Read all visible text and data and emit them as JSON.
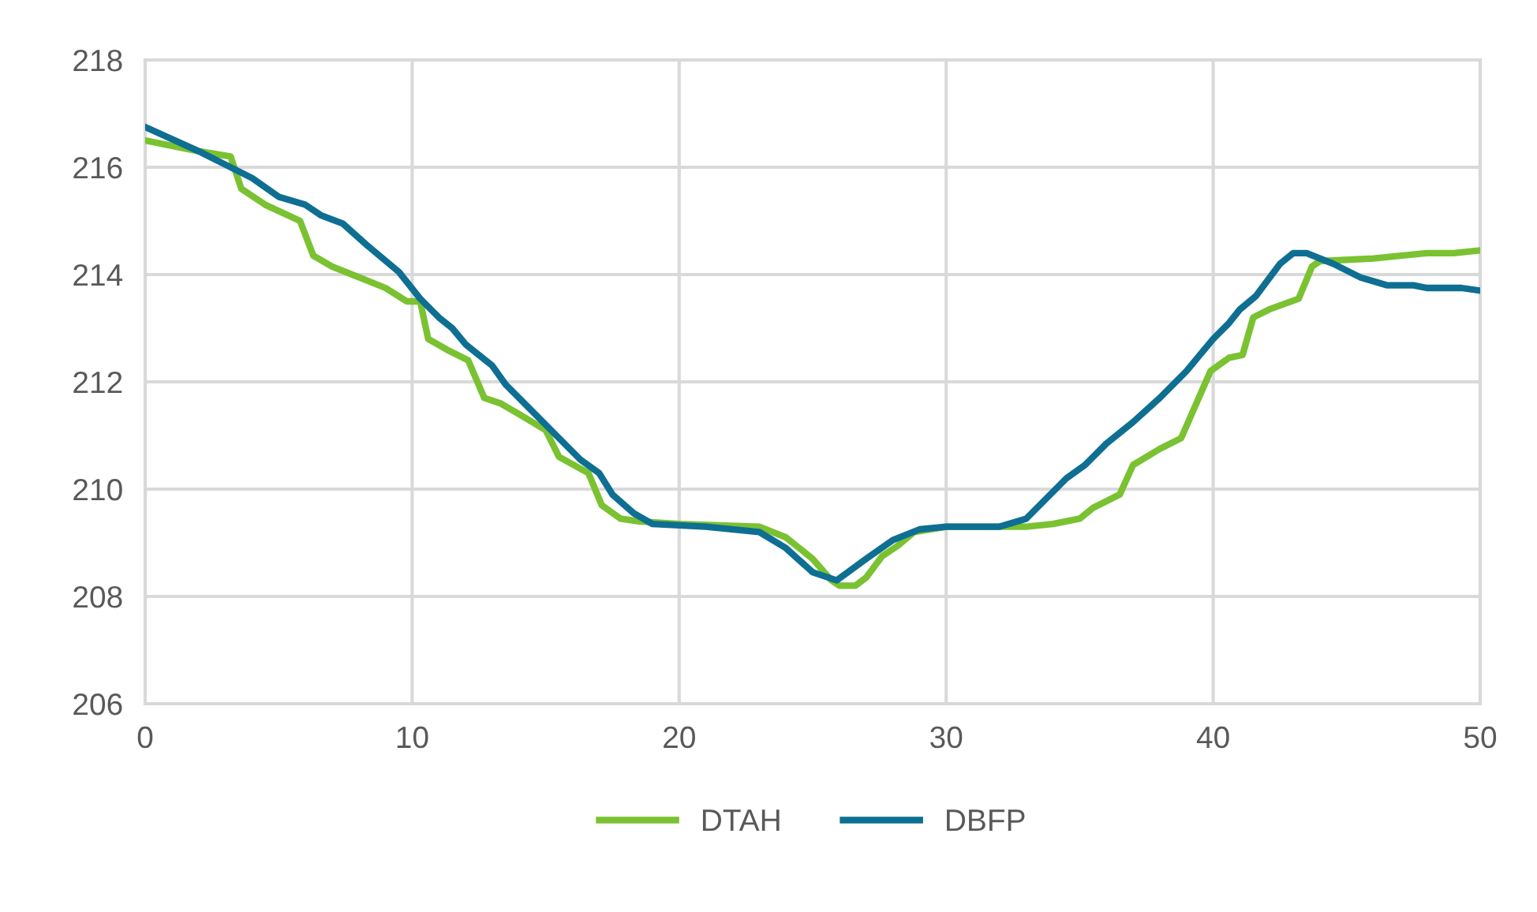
{
  "chart_data": {
    "type": "line",
    "xlim": [
      0,
      50
    ],
    "xticks": [
      0,
      10,
      20,
      30,
      40,
      50
    ],
    "ylim": [
      206,
      218
    ],
    "yticks": [
      206,
      208,
      210,
      212,
      214,
      216,
      218
    ],
    "grid": true,
    "legend": "bottom",
    "marker": "none",
    "line_style": "solid",
    "series": [
      {
        "name": "DTAH",
        "color": "#7ac231",
        "x": [
          0,
          1,
          2,
          3.2,
          3.6,
          4.5,
          5.8,
          6.3,
          7,
          8,
          9,
          9.8,
          10.3,
          10.6,
          11.3,
          12.1,
          12.7,
          13.3,
          14,
          15,
          15.5,
          16.6,
          17.1,
          17.8,
          18.5,
          20,
          23,
          24,
          25,
          25.7,
          26,
          26.6,
          27,
          27.6,
          28.2,
          28.8,
          30,
          33,
          34,
          35,
          35.5,
          36.5,
          37,
          38,
          38.8,
          39.9,
          40.6,
          41.1,
          41.5,
          42.1,
          43.2,
          43.7,
          44,
          46,
          48,
          49,
          50
        ],
        "values": [
          216.5,
          216.4,
          216.3,
          216.2,
          215.6,
          215.3,
          215.0,
          214.35,
          214.15,
          213.95,
          213.75,
          213.5,
          213.5,
          212.8,
          212.6,
          212.4,
          211.7,
          211.6,
          211.4,
          211.1,
          210.6,
          210.3,
          209.7,
          209.45,
          209.4,
          209.35,
          209.3,
          209.1,
          208.7,
          208.3,
          208.2,
          208.2,
          208.35,
          208.75,
          208.95,
          209.2,
          209.3,
          209.3,
          209.35,
          209.45,
          209.65,
          209.9,
          210.45,
          210.75,
          210.95,
          212.2,
          212.45,
          212.5,
          213.2,
          213.35,
          213.55,
          214.15,
          214.25,
          214.3,
          214.4,
          214.4,
          214.45
        ]
      },
      {
        "name": "DBFP",
        "color": "#0e6f92",
        "x": [
          0,
          2,
          3,
          4,
          5,
          6,
          6.6,
          7.4,
          8.3,
          9.5,
          10.3,
          11,
          11.5,
          12,
          13,
          13.5,
          14,
          15,
          15.8,
          16.3,
          17,
          17.5,
          18.3,
          19,
          21,
          23,
          24,
          25,
          25.9,
          27,
          28,
          29,
          30,
          32,
          33,
          33.5,
          34.5,
          35.2,
          36,
          37,
          38,
          39,
          40,
          40.6,
          41,
          41.6,
          42.5,
          43,
          43.5,
          44.5,
          45.5,
          46.5,
          47.5,
          48,
          49.3,
          50
        ],
        "values": [
          216.75,
          216.3,
          216.05,
          215.8,
          215.45,
          215.3,
          215.1,
          214.95,
          214.55,
          214.05,
          213.55,
          213.2,
          213.0,
          212.7,
          212.3,
          211.95,
          211.7,
          211.2,
          210.8,
          210.55,
          210.3,
          209.9,
          209.55,
          209.35,
          209.3,
          209.2,
          208.9,
          208.45,
          208.3,
          208.7,
          209.05,
          209.25,
          209.3,
          209.3,
          209.45,
          209.7,
          210.2,
          210.45,
          210.85,
          211.25,
          211.7,
          212.2,
          212.8,
          213.1,
          213.35,
          213.6,
          214.2,
          214.4,
          214.4,
          214.2,
          213.95,
          213.8,
          213.8,
          213.75,
          213.75,
          213.7
        ]
      }
    ]
  }
}
